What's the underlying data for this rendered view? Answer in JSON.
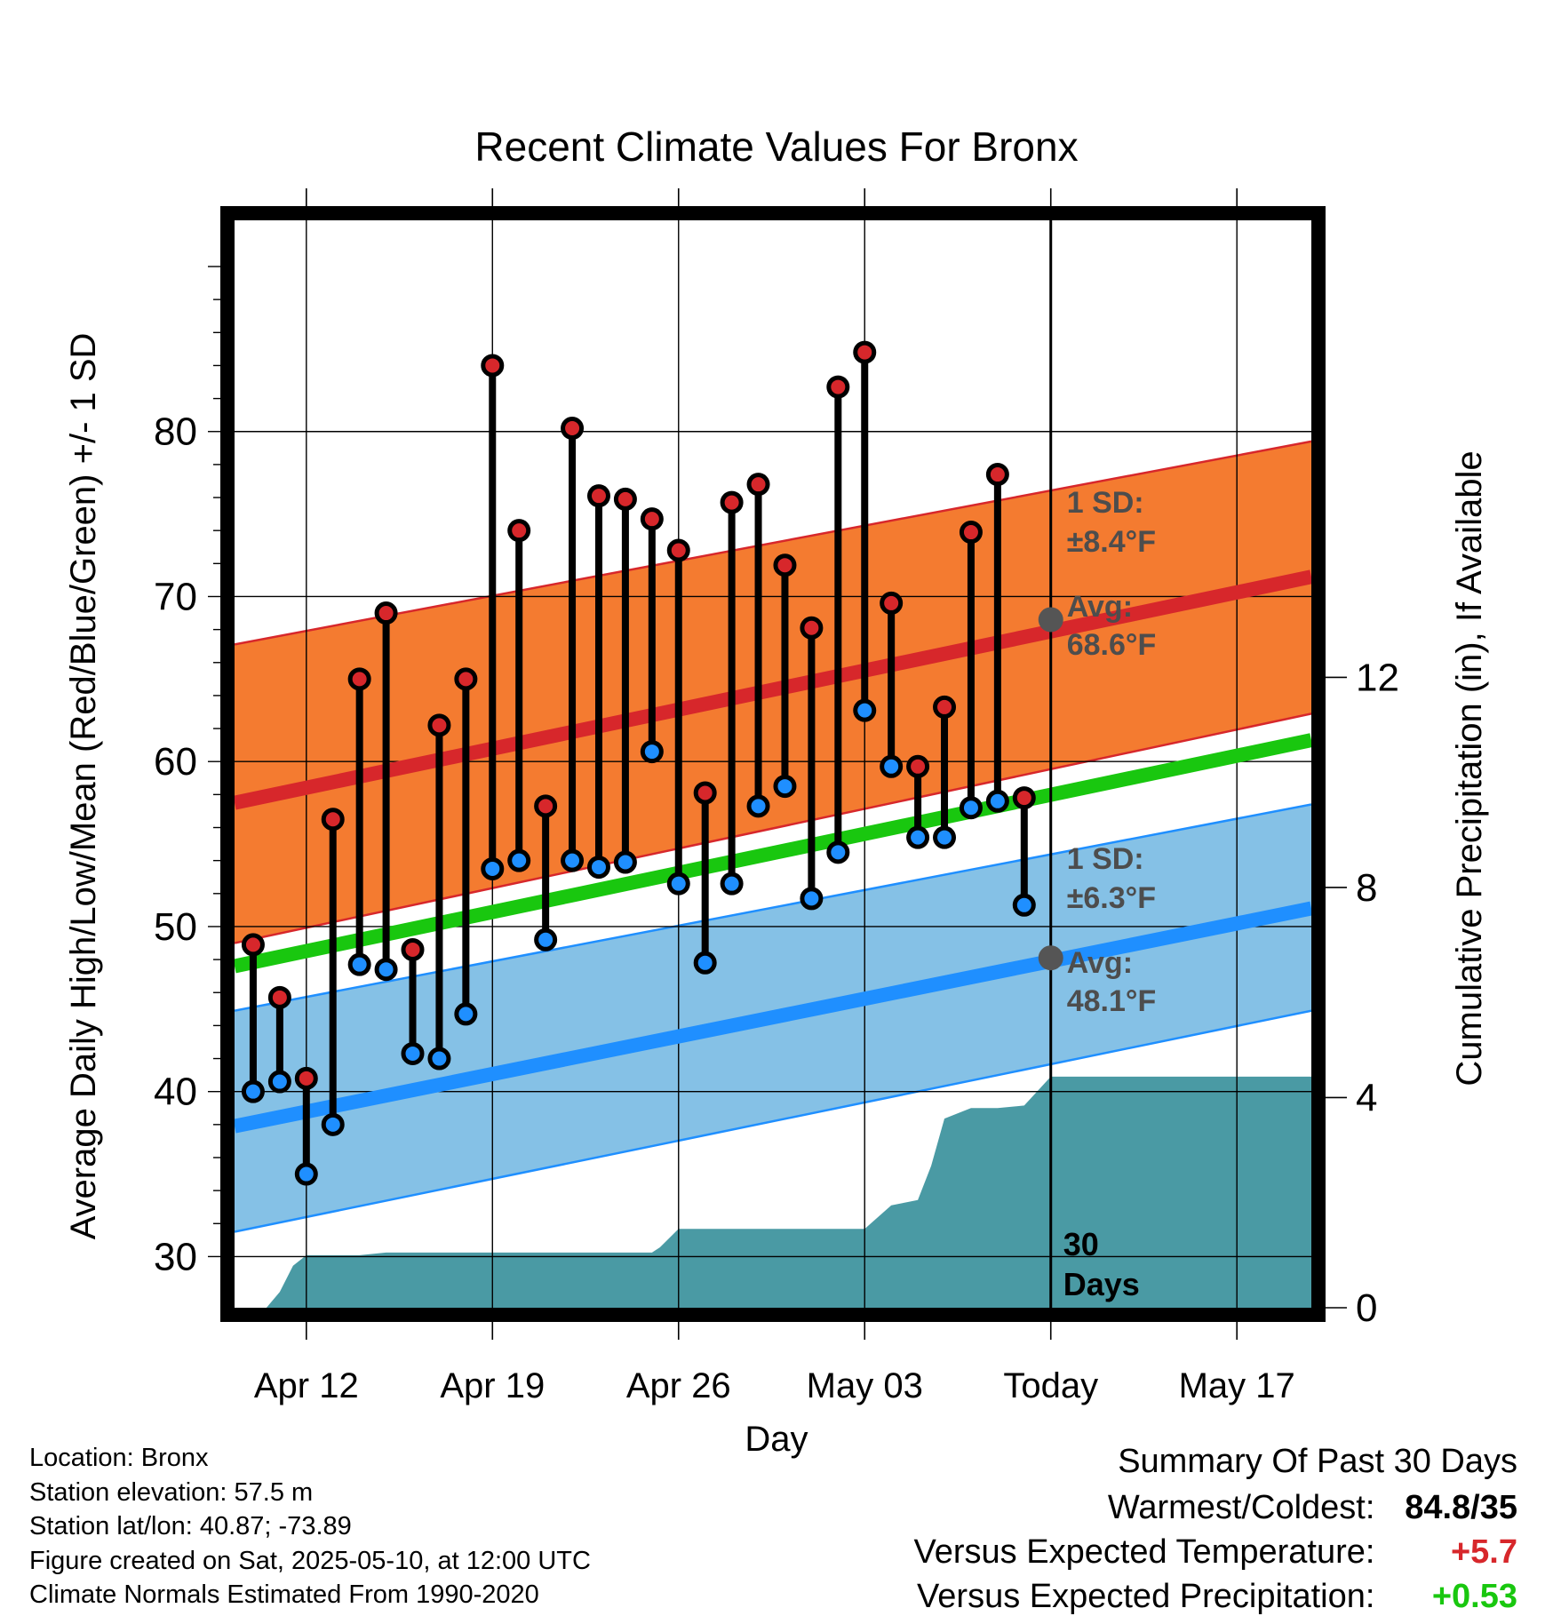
{
  "chart_data": {
    "type": "line",
    "title": "Recent Climate Values For Bronx",
    "xlabel": "Day",
    "ylabel": "Average Daily High/Low/Mean (Red/Blue/Green) +/- 1 SD",
    "y2label": "Cumulative Precipitation (in), If Available",
    "ylim": [
      26.9,
      92.8
    ],
    "y2lim": [
      0,
      20.7
    ],
    "yticks": [
      30,
      40,
      50,
      60,
      70,
      80
    ],
    "y2ticks": [
      0,
      4,
      8,
      12
    ],
    "xticks": [
      {
        "day": 2,
        "label": "Apr 12"
      },
      {
        "day": 9,
        "label": "Apr 19"
      },
      {
        "day": 16,
        "label": "Apr 26"
      },
      {
        "day": 23,
        "label": "May 03"
      },
      {
        "day": 30,
        "label": "Today"
      },
      {
        "day": 37,
        "label": "May 17"
      }
    ],
    "xlim": [
      -0.7,
      39.8
    ],
    "today_day": 30,
    "today_label": "30 Days",
    "grid": true,
    "normals": {
      "high_avg": [
        57.5,
        71.2
      ],
      "high_sd_upper": [
        67.1,
        79.4
      ],
      "high_sd_lower": [
        49.0,
        62.9
      ],
      "mean_avg": [
        47.6,
        61.3
      ],
      "low_avg": [
        37.9,
        51.1
      ],
      "low_sd_upper": [
        44.9,
        57.4
      ],
      "low_sd_lower": [
        31.5,
        44.9
      ]
    },
    "high_annotation": {
      "sd_line1": "1 SD:",
      "sd_line2": "±8.4",
      "unit": "°F",
      "avg_line1": "Avg:",
      "avg_line2": "68.6",
      "avg_value": 68.6
    },
    "low_annotation": {
      "sd_line1": "1 SD:",
      "sd_line2": "±6.3",
      "unit": "°F",
      "avg_line1": "Avg:",
      "avg_line2": "48.1",
      "avg_value": 48.1
    },
    "series": [
      {
        "name": "High",
        "values": [
          48.9,
          45.7,
          40.8,
          56.5,
          65.0,
          69.0,
          48.6,
          62.2,
          65.0,
          84.0,
          74.0,
          57.3,
          80.2,
          76.1,
          75.9,
          74.7,
          72.8,
          58.1,
          75.7,
          76.8,
          71.9,
          68.1,
          82.7,
          84.8,
          69.6,
          59.7,
          63.3,
          73.9,
          77.4,
          57.8
        ]
      },
      {
        "name": "Low",
        "values": [
          40.0,
          40.6,
          35.0,
          38.0,
          47.7,
          47.4,
          42.3,
          42.0,
          44.7,
          53.5,
          54.0,
          49.2,
          54.0,
          53.6,
          53.9,
          60.6,
          52.6,
          47.8,
          52.6,
          57.3,
          58.5,
          51.7,
          54.5,
          63.1,
          59.7,
          55.4,
          55.4,
          57.2,
          57.6,
          51.3
        ]
      }
    ],
    "precip": {
      "x": [
        0.5,
        1.0,
        1.5,
        2.0,
        3.0,
        4.0,
        5.0,
        6.0,
        7.0,
        8.0,
        9.0,
        10.0,
        11.0,
        12.0,
        13.0,
        14.0,
        15.0,
        15.3,
        16.0,
        17.0,
        18.0,
        19.0,
        20.0,
        21.0,
        22.0,
        23.0,
        24.0,
        24.5,
        25.0,
        25.5,
        26.0,
        27.0,
        28.0,
        29.0,
        30.0,
        31.0,
        32.0,
        33.0,
        34.0,
        35.0,
        36.0,
        37.0,
        38.0,
        39.0,
        39.8
      ],
      "values": [
        0.0,
        0.3,
        0.8,
        1.0,
        1.0,
        1.0,
        1.05,
        1.05,
        1.05,
        1.05,
        1.05,
        1.05,
        1.05,
        1.05,
        1.05,
        1.05,
        1.05,
        1.15,
        1.5,
        1.5,
        1.5,
        1.5,
        1.5,
        1.5,
        1.5,
        1.5,
        1.95,
        2.0,
        2.05,
        2.7,
        3.6,
        3.8,
        3.8,
        3.85,
        4.4,
        4.4,
        4.4,
        4.4,
        4.4,
        4.4,
        4.4,
        4.4,
        4.4,
        4.4,
        4.4
      ]
    },
    "colors": {
      "high_band": "#f47b30",
      "high_line": "#d7272b",
      "mean_line": "#19c70f",
      "low_band": "#85c1e6",
      "low_line": "#1f8fff",
      "precip": "#4a9aa4",
      "high_dot": "#d7272b",
      "low_dot": "#1f8fff",
      "avg_dot": "#555555",
      "annotation_text": "#4d4d4d"
    }
  },
  "info": {
    "location": "Location: Bronx",
    "elevation": "Station elevation: 57.5 m",
    "latlon": "Station lat/lon: 40.87; -73.89",
    "created": "Figure created on Sat, 2025-05-10, at 12:00 UTC",
    "normals": "Climate Normals Estimated From 1990-2020"
  },
  "summary": {
    "title": "Summary Of Past 30 Days",
    "warmest_label": "Warmest/Coldest:",
    "warmest_value": "84.8/35",
    "temp_label": "Versus Expected Temperature:",
    "temp_value": "+5.7",
    "temp_color": "#d7272b",
    "precip_label": "Versus Expected Precipitation:",
    "precip_value": "+0.53",
    "precip_color": "#19c70f"
  }
}
